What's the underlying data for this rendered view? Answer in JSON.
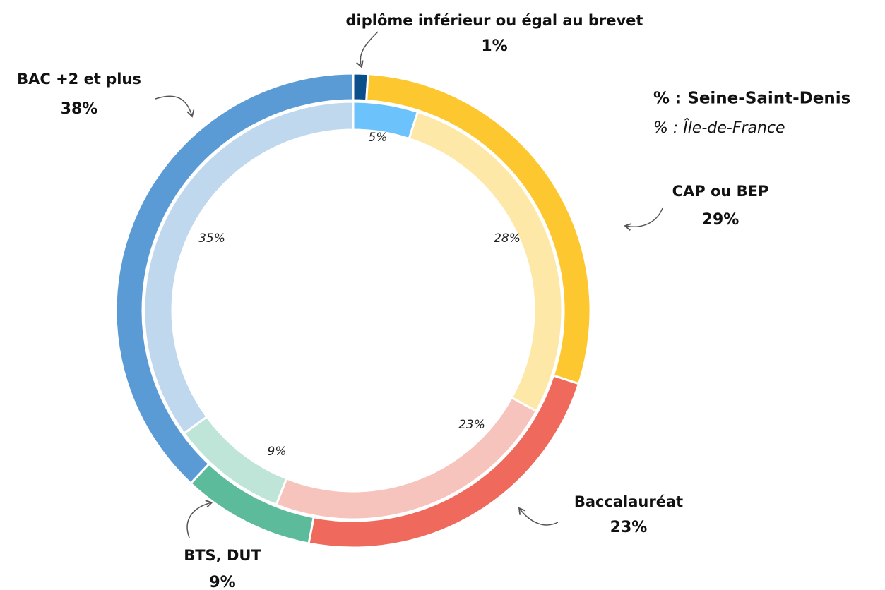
{
  "chart_data": {
    "type": "donut",
    "categories": [
      "diplôme inférieur  ou égal au brevet",
      "CAP ou BEP",
      "Baccalauréat",
      "BTS, DUT",
      "BAC +2 et plus"
    ],
    "series": [
      {
        "name": "% : Seine-Saint-Denis",
        "colors": [
          "#0b4f8a",
          "#fdc82f",
          "#ef6a5c",
          "#5bbb9b",
          "#5b9bd5"
        ],
        "values": [
          1,
          29,
          23,
          9,
          38
        ],
        "value_labels": [
          "1%",
          "29%",
          "23%",
          "9%",
          "38%"
        ]
      },
      {
        "name": "% : Île-de-France",
        "colors": [
          "#6cc3fb",
          "#fde8a8",
          "#f7c3bd",
          "#bfe4d8",
          "#bfd8ee"
        ],
        "values": [
          5,
          28,
          23,
          9,
          35
        ],
        "value_labels": [
          "5%",
          "28%",
          "23%",
          "9%",
          "35%"
        ]
      }
    ]
  }
}
